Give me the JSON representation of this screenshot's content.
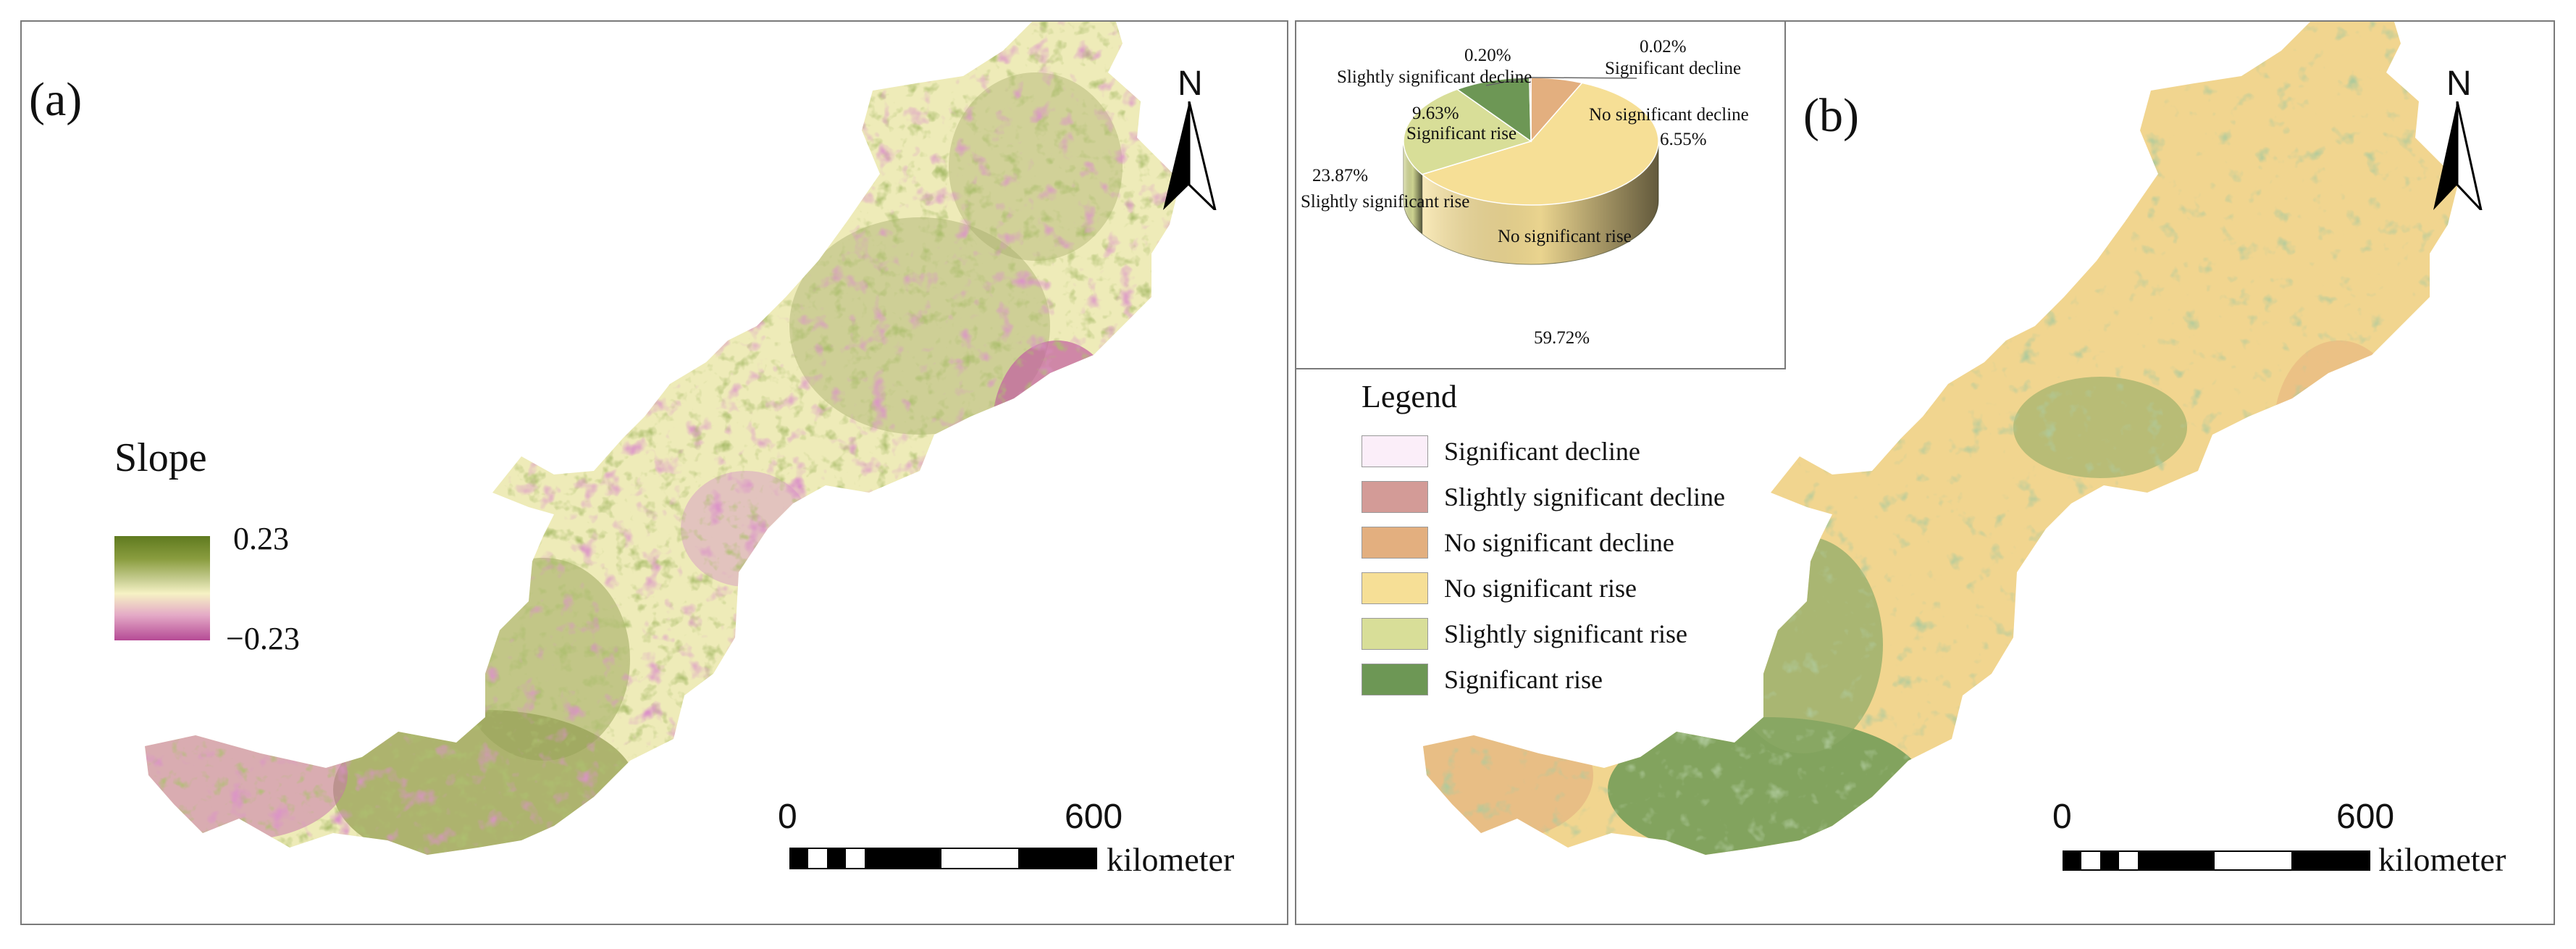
{
  "panel_a": {
    "tag": "(a)",
    "north": "N",
    "slope": {
      "title": "Slope",
      "max": "0.23",
      "min": "−0.23",
      "ramp": [
        "#5f7a1f",
        "#8a9d3f",
        "#c8ce93",
        "#f6f2c4",
        "#e4a9c6",
        "#b54a95"
      ]
    },
    "scale": {
      "start": "0",
      "end": "600",
      "unit": "kilometer"
    }
  },
  "panel_b": {
    "tag": "(b)",
    "north": "N",
    "scale": {
      "start": "0",
      "end": "600",
      "unit": "kilometer"
    },
    "legend": {
      "title": "Legend",
      "items": [
        {
          "label": "Significant decline",
          "color": "#fbeef9"
        },
        {
          "label": "Slightly significant decline",
          "color": "#d39b97"
        },
        {
          "label": "No significant decline",
          "color": "#e3af7f"
        },
        {
          "label": "No significant rise",
          "color": "#f6df96"
        },
        {
          "label": "Slightly significant rise",
          "color": "#d8de98"
        },
        {
          "label": "Significant rise",
          "color": "#6d9755"
        }
      ]
    },
    "pie": {
      "slices": [
        {
          "name": "Significant decline",
          "value": 0.02,
          "pct": "0.02%",
          "color": "#fbeef9"
        },
        {
          "name": "No significant decline",
          "value": 6.55,
          "pct": "6.55%",
          "color": "#e3af7f"
        },
        {
          "name": "No significant rise",
          "value": 59.72,
          "pct": "59.72%",
          "color": "#f6df96"
        },
        {
          "name": "Slightly significant rise",
          "value": 23.87,
          "pct": "23.87%",
          "color": "#d8de98"
        },
        {
          "name": "Significant rise",
          "value": 9.63,
          "pct": "9.63%",
          "color": "#6d9755"
        },
        {
          "name": "Slightly significant decline",
          "value": 0.2,
          "pct": "0.20%",
          "color": "#d39b97"
        }
      ]
    }
  }
}
